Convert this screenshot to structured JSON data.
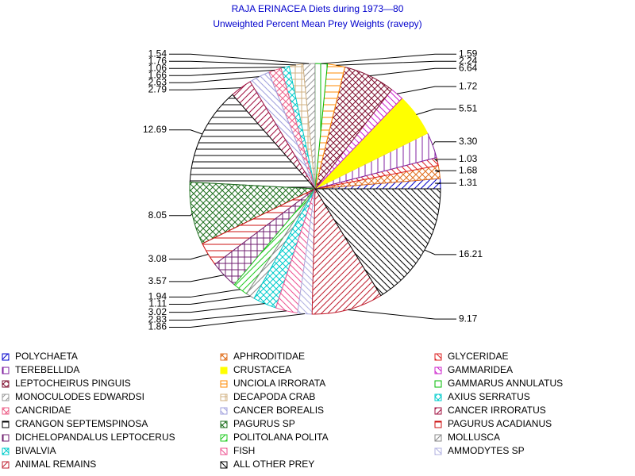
{
  "chart_data": {
    "type": "pie",
    "title": "RAJA ERINACEA Diets during 1973—80",
    "subtitle": "Unweighted Percent Mean Prey Weights (ravepy)",
    "categories": [
      "POLYCHAETA",
      "APHRODITIDAE",
      "GLYCERIDAE",
      "TEREBELLIDA",
      "CRUSTACEA",
      "GAMMARIDEA",
      "LEPTOCHEIRUS PINGUIS",
      "UNCIOLA IRRORATA",
      "GAMMARUS ANNULATUS",
      "MONOCULODES EDWARDSI",
      "DECAPODA CRAB",
      "AXIUS SERRATUS",
      "CANCRIDAE",
      "CANCER BOREALIS",
      "CANCER IRRORATUS",
      "CRANGON SEPTEMSPINOSA",
      "PAGURUS SP",
      "PAGURUS ACADIANUS",
      "DICHELOPANDALUS LEPTOCERUS",
      "POLITOLANA POLITA",
      "MOLLUSCA",
      "BIVALVIA",
      "FISH",
      "AMMODYTES SP",
      "ANIMAL REMAINS",
      "ALL OTHER PREY"
    ],
    "values": [
      1.31,
      1.68,
      1.03,
      3.3,
      5.51,
      1.72,
      6.64,
      2.24,
      1.59,
      1.54,
      1.76,
      1.06,
      1.66,
      2.63,
      2.79,
      12.69,
      8.05,
      3.08,
      3.57,
      1.94,
      1.11,
      3.02,
      2.83,
      1.86,
      9.17,
      16.21
    ],
    "value_labels": [
      "1.31",
      "1.68",
      "1.03",
      "3.30",
      "5.51",
      "1.72",
      "6.64",
      "2.24",
      "1.59",
      "1.54",
      "1.76",
      "1.06",
      "1.66",
      "2.63",
      "2.79",
      "12.69",
      "8.05",
      "3.08",
      "3.57",
      "1.94",
      "1.11",
      "3.02",
      "2.83",
      "1.86",
      "9.17",
      "16.21"
    ],
    "colors": [
      "#0000cc",
      "#e07020",
      "#dd2020",
      "#8020a0",
      "#ffff00",
      "#cc20cc",
      "#801030",
      "#ff8800",
      "#00bb00",
      "#999999",
      "#d0b080",
      "#00cccc",
      "#ee6088",
      "#a0a0dd",
      "#a01040",
      "#000000",
      "#207020",
      "#cc1010",
      "#702070",
      "#20cc20",
      "#888888",
      "#00cccc",
      "#ee5090",
      "#b0b0e0",
      "#c02030",
      "#000000"
    ],
    "hatches": [
      "fwd",
      "cross",
      "back",
      "v",
      "solid",
      "back",
      "cross",
      "h",
      "v",
      "fwd",
      "grid",
      "cross",
      "cross",
      "back",
      "fwd",
      "h",
      "cross",
      "h",
      "grid",
      "fwd",
      "fwd",
      "cross",
      "back",
      "back",
      "fwd",
      "back"
    ]
  }
}
